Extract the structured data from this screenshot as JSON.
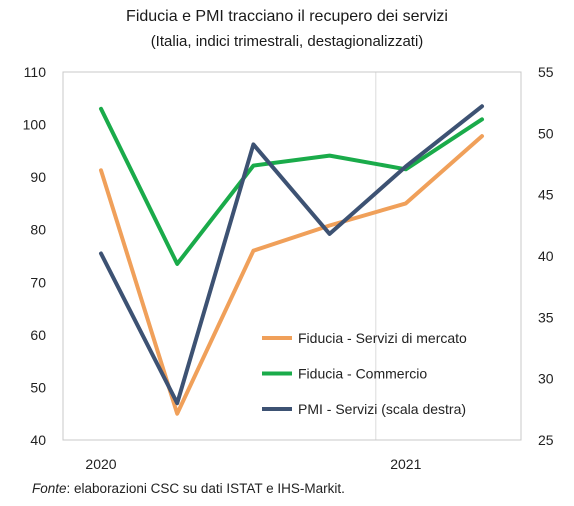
{
  "chart_data": {
    "type": "line",
    "title": "Fiducia e PMI tracciano il recupero dei servizi",
    "subtitle": "(Italia, indici trimestrali, destagionalizzati)",
    "x": [
      "2020Q1",
      "2020Q2",
      "2020Q3",
      "2020Q4",
      "2021Q1",
      "2021Q2"
    ],
    "x_tick_labels": [
      {
        "label": "2020",
        "at": "2020Q1"
      },
      {
        "label": "2021",
        "at": "2021Q1"
      }
    ],
    "y_left": {
      "lim": [
        40,
        110
      ],
      "ticks": [
        40,
        50,
        60,
        70,
        80,
        90,
        100,
        110
      ]
    },
    "y_right": {
      "lim": [
        25,
        55
      ],
      "ticks": [
        25,
        30,
        35,
        40,
        45,
        50,
        55
      ]
    },
    "grid": "vertical lines at year starts",
    "legend_position": "bottom-right inside plot",
    "series": [
      {
        "name": "Fiducia - Servizi di mercato",
        "axis": "left",
        "color": "#f0a05a",
        "values": [
          91.3,
          45.0,
          76.0,
          80.8,
          85.0,
          97.8
        ]
      },
      {
        "name": "Fiducia - Commercio",
        "axis": "left",
        "color": "#1aab4a",
        "values": [
          103.0,
          73.5,
          92.2,
          94.1,
          91.5,
          101.0
        ]
      },
      {
        "name": "PMI - Servizi (scala destra)",
        "axis": "right",
        "color": "#3d5273",
        "values": [
          40.2,
          28.0,
          49.1,
          41.8,
          47.3,
          52.2
        ]
      }
    ]
  },
  "source": {
    "label": "Fonte",
    "text": ": elaborazioni CSC su dati ISTAT e IHS-Markit."
  },
  "colors": {
    "axis": "#c8c8c8",
    "grid": "#dcdcdc"
  }
}
